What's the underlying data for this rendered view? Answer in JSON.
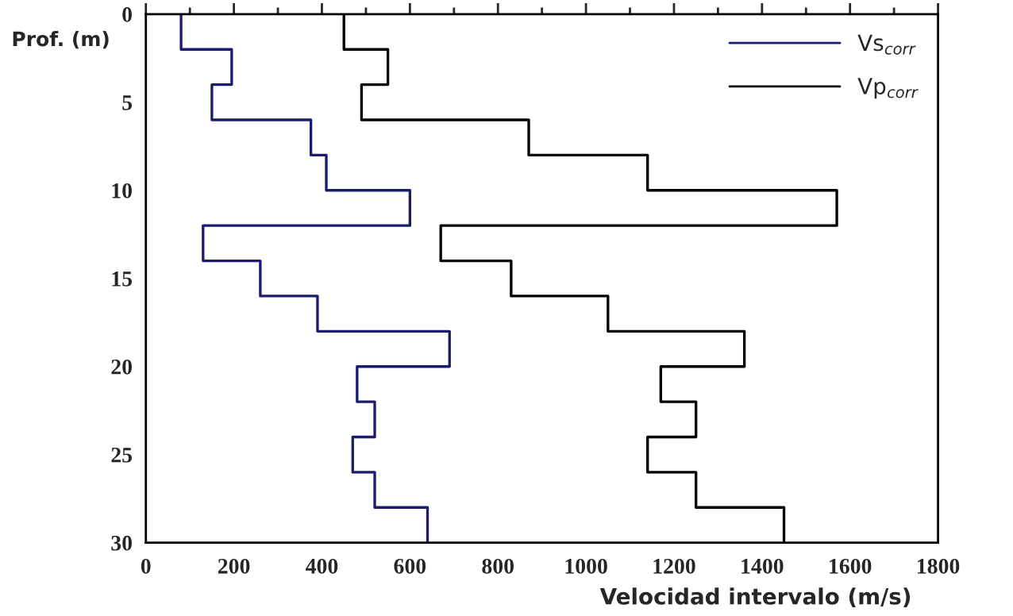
{
  "chart_data": {
    "type": "line",
    "xlabel": "Velocidad intervalo (m/s)",
    "ylabel": "Prof. (m)",
    "xlim": [
      0,
      1800
    ],
    "xticks": [
      0,
      200,
      400,
      600,
      800,
      1000,
      1200,
      1400,
      1600,
      1800
    ],
    "ylim": [
      30,
      0
    ],
    "yticks": [
      0,
      5,
      10,
      15,
      20,
      25,
      30
    ],
    "grid": false,
    "legend": "top right",
    "marker": "none",
    "line_style": "solid",
    "series": [
      {
        "name": "Vs$_{corr}$",
        "color": "#1c1c6e",
        "x": [
          80,
          80,
          195,
          195,
          150,
          150,
          375,
          375,
          410,
          410,
          600,
          600,
          130,
          130,
          260,
          260,
          390,
          390,
          690,
          690,
          480,
          480,
          520,
          520,
          470,
          470,
          520,
          520,
          640,
          640
        ],
        "values": [
          0,
          2,
          2,
          4,
          4,
          6,
          6,
          8,
          8,
          10,
          10,
          12,
          12,
          14,
          14,
          16,
          16,
          18,
          18,
          20,
          20,
          22,
          22,
          24,
          24,
          26,
          26,
          28,
          28,
          30
        ]
      },
      {
        "name": "Vp$_{corr}$",
        "color": "#000000",
        "x": [
          450,
          450,
          550,
          550,
          490,
          490,
          870,
          870,
          1140,
          1140,
          1570,
          1570,
          670,
          670,
          830,
          830,
          1050,
          1050,
          1360,
          1360,
          1170,
          1170,
          1250,
          1250,
          1140,
          1140,
          1250,
          1250,
          1450,
          1450
        ],
        "values": [
          0,
          2,
          2,
          4,
          4,
          6,
          6,
          8,
          8,
          10,
          10,
          12,
          12,
          14,
          14,
          16,
          16,
          18,
          18,
          20,
          20,
          22,
          22,
          24,
          24,
          26,
          26,
          28,
          28,
          30
        ]
      }
    ]
  }
}
